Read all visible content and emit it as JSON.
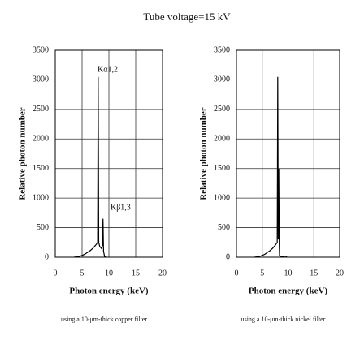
{
  "title": "Tube voltage=15 kV",
  "chart_data": [
    {
      "type": "line",
      "xlabel": "Photon energy (keV)",
      "ylabel": "Relative photon number",
      "caption": "using a 10-μm-thick copper filter",
      "annotations": [
        "Kα1,2",
        "Kβ1,3"
      ],
      "x": [
        3.5,
        4.5,
        5,
        5.5,
        6,
        6.5,
        7,
        7.5,
        7.9,
        8.0,
        8.1,
        8.3,
        8.6,
        8.8,
        8.9,
        9.0,
        9.2,
        9.6
      ],
      "values": [
        0,
        15,
        30,
        50,
        80,
        110,
        150,
        200,
        250,
        3050,
        250,
        180,
        150,
        200,
        650,
        100,
        10,
        0
      ],
      "color": "#000000",
      "xlim": [
        0,
        20
      ],
      "xticks": [
        0,
        5,
        10,
        15,
        20
      ],
      "ylim": [
        0,
        3500
      ],
      "yticks": [
        0,
        500,
        1000,
        1500,
        2000,
        2500,
        3000,
        3500
      ],
      "grid": true
    },
    {
      "type": "line",
      "xlabel": "Photon energy (keV)",
      "ylabel": "Relative photon number",
      "caption": "using a 10-μm-thick nickel filter",
      "x": [
        3.5,
        4.5,
        5,
        5.5,
        6,
        6.5,
        7,
        7.5,
        7.9,
        8.0,
        8.1,
        8.2,
        8.3,
        8.35,
        8.9,
        9.5,
        9.8
      ],
      "values": [
        0,
        15,
        30,
        50,
        80,
        110,
        150,
        200,
        250,
        3050,
        300,
        1500,
        200,
        20,
        10,
        20,
        0
      ],
      "color": "#000000",
      "xlim": [
        0,
        20
      ],
      "xticks": [
        0,
        5,
        10,
        15,
        20
      ],
      "ylim": [
        0,
        3500
      ],
      "yticks": [
        0,
        500,
        1000,
        1500,
        2000,
        2500,
        3000,
        3500
      ],
      "grid": true
    }
  ]
}
